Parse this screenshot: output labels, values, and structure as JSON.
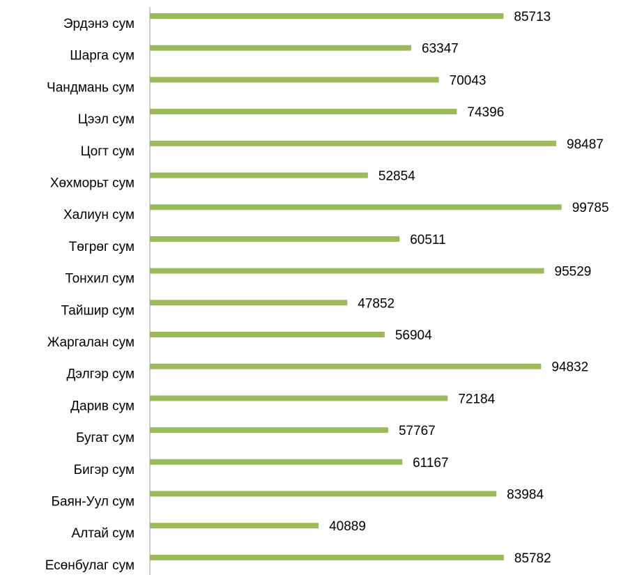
{
  "chart_data": {
    "type": "barh",
    "categories": [
      "Эрдэнэ сум",
      "Шарга сум",
      "Чандмань сум",
      "Цээл сум",
      "Цогт сум",
      "Хөхморьт сум",
      "Халиун сум",
      "Төгрөг сум",
      "Тонхил сум",
      "Тайшир сум",
      "Жаргалан сум",
      "Дэлгэр сум",
      "Дарив сум",
      "Бугат сум",
      "Бигэр сум",
      "Баян-Уул сум",
      "Алтай сум",
      "Есөнбулаг сум"
    ],
    "values": [
      85713,
      63347,
      70043,
      74396,
      98487,
      52854,
      99785,
      60511,
      95529,
      47852,
      56904,
      94832,
      72184,
      57767,
      61167,
      83984,
      40889,
      85782
    ],
    "color": "#9bbb59",
    "xlim": [
      0,
      100000
    ]
  }
}
